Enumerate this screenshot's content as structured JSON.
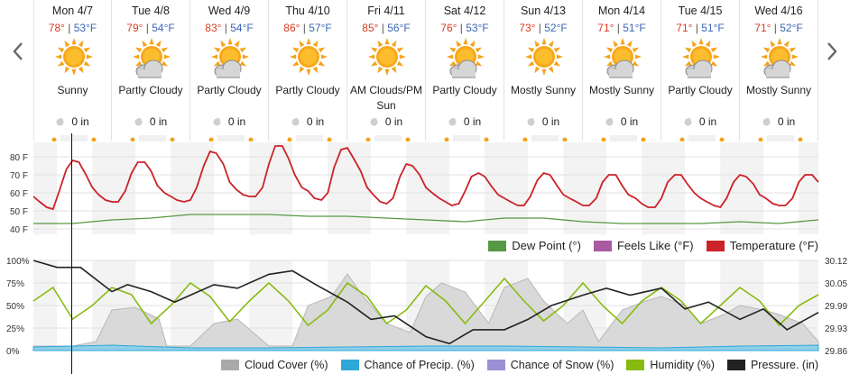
{
  "nav": {
    "prev_icon": "chevron-left-icon",
    "next_icon": "chevron-right-icon"
  },
  "forecast": [
    {
      "day": "Mon 4/7",
      "hi": "78°",
      "lo": "53°F",
      "icon": "sunny-icon",
      "condition": "Sunny",
      "precip": "0 in"
    },
    {
      "day": "Tue 4/8",
      "hi": "79°",
      "lo": "54°F",
      "icon": "partly-cloudy-icon",
      "condition": "Partly Cloudy",
      "precip": "0 in"
    },
    {
      "day": "Wed 4/9",
      "hi": "83°",
      "lo": "54°F",
      "icon": "partly-cloudy-icon",
      "condition": "Partly Cloudy",
      "precip": "0 in"
    },
    {
      "day": "Thu 4/10",
      "hi": "86°",
      "lo": "57°F",
      "icon": "sunny-icon",
      "condition": "Partly Cloudy",
      "precip": "0 in"
    },
    {
      "day": "Fri 4/11",
      "hi": "85°",
      "lo": "56°F",
      "icon": "sunny-icon",
      "condition": "AM Clouds/PM Sun",
      "precip": "0 in"
    },
    {
      "day": "Sat 4/12",
      "hi": "76°",
      "lo": "53°F",
      "icon": "partly-cloudy-icon",
      "condition": "Partly Cloudy",
      "precip": "0 in"
    },
    {
      "day": "Sun 4/13",
      "hi": "73°",
      "lo": "52°F",
      "icon": "sunny-icon",
      "condition": "Mostly Sunny",
      "precip": "0 in"
    },
    {
      "day": "Mon 4/14",
      "hi": "71°",
      "lo": "51°F",
      "icon": "partly-cloudy-icon",
      "condition": "Mostly Sunny",
      "precip": "0 in"
    },
    {
      "day": "Tue 4/15",
      "hi": "71°",
      "lo": "51°F",
      "icon": "partly-cloudy-icon",
      "condition": "Partly Cloudy",
      "precip": "0 in"
    },
    {
      "day": "Wed 4/16",
      "hi": "71°",
      "lo": "52°F",
      "icon": "partly-cloudy-icon",
      "condition": "Mostly Sunny",
      "precip": "0 in"
    }
  ],
  "colors": {
    "temperature": "#cc2229",
    "dew_point": "#559944",
    "feels_like": "#a95aa1",
    "cloud_cover": "#aaaaaa",
    "precip": "#2ea8d8",
    "snow": "#9b8fd6",
    "humidity": "#88bb11",
    "pressure": "#222222",
    "high": "#d63a1f",
    "low": "#3a66b5"
  },
  "legend_top": [
    {
      "key": "dew_point",
      "label": "Dew Point (°)"
    },
    {
      "key": "feels_like",
      "label": "Feels Like (°F)"
    },
    {
      "key": "temperature",
      "label": "Temperature (°F)"
    }
  ],
  "legend_bottom": [
    {
      "key": "cloud_cover",
      "label": "Cloud Cover (%)"
    },
    {
      "key": "precip",
      "label": "Chance of Precip. (%)"
    },
    {
      "key": "snow",
      "label": "Chance of Snow (%)"
    },
    {
      "key": "humidity",
      "label": "Humidity (%)"
    },
    {
      "key": "pressure",
      "label": "Pressure. (in)"
    }
  ],
  "chart_data": [
    {
      "type": "line",
      "title": "",
      "y_ticks": [
        "80 F",
        "70 F",
        "60 F",
        "50 F",
        "40 F"
      ],
      "ylim": [
        37,
        88
      ],
      "x_days": 10,
      "grid": true,
      "series": [
        {
          "name": "Temperature (°F)",
          "key": "temperature",
          "x": [
            0,
            0.08,
            0.17,
            0.25,
            0.33,
            0.42,
            0.5,
            0.58,
            0.67,
            0.75,
            0.83,
            0.92,
            1,
            1.08,
            1.17,
            1.25,
            1.33,
            1.42,
            1.5,
            1.58,
            1.67,
            1.75,
            1.83,
            1.92,
            2,
            2.08,
            2.17,
            2.25,
            2.33,
            2.42,
            2.5,
            2.58,
            2.67,
            2.75,
            2.83,
            2.92,
            3,
            3.08,
            3.17,
            3.25,
            3.33,
            3.42,
            3.5,
            3.58,
            3.67,
            3.75,
            3.83,
            3.92,
            4,
            4.08,
            4.17,
            4.25,
            4.33,
            4.42,
            4.5,
            4.58,
            4.67,
            4.75,
            4.83,
            4.92,
            5,
            5.08,
            5.17,
            5.25,
            5.33,
            5.42,
            5.5,
            5.58,
            5.67,
            5.75,
            5.83,
            5.92,
            6,
            6.08,
            6.17,
            6.25,
            6.33,
            6.42,
            6.5,
            6.58,
            6.67,
            6.75,
            6.83,
            6.92,
            7,
            7.08,
            7.17,
            7.25,
            7.33,
            7.42,
            7.5,
            7.58,
            7.67,
            7.75,
            7.83,
            7.92,
            8,
            8.08,
            8.17,
            8.25,
            8.33,
            8.42,
            8.5,
            8.58,
            8.67,
            8.75,
            8.83,
            8.92,
            9,
            9.08,
            9.17,
            9.25,
            9.33,
            9.42,
            9.5,
            9.58,
            9.67,
            9.75,
            9.83,
            9.92,
            10
          ],
          "y": [
            58,
            55,
            52,
            51,
            61,
            73,
            78,
            77,
            70,
            63,
            59,
            56,
            55,
            55,
            61,
            71,
            77,
            77,
            72,
            64,
            60,
            58,
            56,
            55,
            56,
            63,
            75,
            83,
            82,
            76,
            66,
            62,
            59,
            58,
            58,
            63,
            76,
            86,
            86,
            79,
            70,
            63,
            61,
            57,
            56,
            60,
            74,
            84,
            85,
            79,
            72,
            63,
            59,
            55,
            54,
            57,
            69,
            76,
            75,
            70,
            63,
            60,
            57,
            55,
            53,
            54,
            61,
            69,
            71,
            69,
            64,
            59,
            57,
            55,
            53,
            53,
            58,
            67,
            71,
            70,
            64,
            59,
            57,
            55,
            53,
            53,
            57,
            66,
            70,
            70,
            64,
            59,
            57,
            54,
            52,
            52,
            57,
            66,
            70,
            70,
            65,
            60,
            57,
            55,
            53,
            52,
            57,
            66,
            70,
            69,
            65,
            59,
            57,
            54,
            53,
            53,
            57,
            66,
            70,
            70,
            66
          ]
        },
        {
          "name": "Dew Point (°)",
          "key": "dew_point",
          "x": [
            0,
            0.5,
            1,
            1.5,
            2,
            2.5,
            3,
            3.5,
            4,
            4.5,
            5,
            5.5,
            6,
            6.5,
            7,
            7.5,
            8,
            8.5,
            9,
            9.5,
            10
          ],
          "y": [
            43,
            43,
            45,
            46,
            48,
            48,
            48,
            47,
            47,
            46,
            45,
            44,
            46,
            46,
            44,
            43,
            43,
            43,
            44,
            43,
            45
          ]
        },
        {
          "name": "Feels Like (°F)",
          "key": "feels_like",
          "x": [],
          "y": []
        }
      ]
    },
    {
      "type": "area",
      "title": "",
      "y_ticks_left": [
        "100%",
        "75%",
        "50%",
        "25%",
        "0%"
      ],
      "y_ticks_right": [
        "30.12",
        "30.05",
        "29.99",
        "29.93",
        "29.86"
      ],
      "ylim": [
        0,
        100
      ],
      "y2lim": [
        29.86,
        30.12
      ],
      "x_days": 10,
      "series": [
        {
          "name": "Cloud Cover (%)",
          "key": "cloud_cover",
          "x": [
            0,
            0.5,
            0.8,
            1,
            1.3,
            1.6,
            1.7,
            2,
            2.3,
            2.6,
            3,
            3.3,
            3.5,
            3.8,
            4,
            4.2,
            4.5,
            4.8,
            5,
            5.2,
            5.5,
            5.8,
            6,
            6.3,
            6.5,
            6.8,
            7,
            7.2,
            7.5,
            7.8,
            8,
            8.3,
            8.5,
            8.8,
            9,
            9.3,
            9.5,
            9.8,
            10
          ],
          "y": [
            5,
            5,
            10,
            45,
            48,
            35,
            5,
            5,
            30,
            35,
            5,
            5,
            50,
            60,
            85,
            60,
            30,
            20,
            60,
            75,
            65,
            30,
            70,
            80,
            55,
            30,
            45,
            10,
            45,
            55,
            60,
            50,
            30,
            40,
            50,
            45,
            40,
            30,
            10
          ]
        },
        {
          "name": "Chance of Precip. (%)",
          "key": "precip",
          "x": [
            0,
            1,
            2,
            3,
            4,
            5,
            6,
            7,
            8,
            9,
            10
          ],
          "y": [
            4,
            6,
            3,
            3,
            4,
            5,
            5,
            4,
            3,
            5,
            6
          ]
        },
        {
          "name": "Chance of Snow (%)",
          "key": "snow",
          "x": [],
          "y": []
        },
        {
          "name": "Humidity (%)",
          "key": "humidity",
          "x": [
            0,
            0.25,
            0.5,
            0.75,
            1,
            1.25,
            1.5,
            1.75,
            2,
            2.25,
            2.5,
            2.75,
            3,
            3.25,
            3.5,
            3.75,
            4,
            4.25,
            4.5,
            4.75,
            5,
            5.25,
            5.5,
            5.75,
            6,
            6.25,
            6.5,
            6.75,
            7,
            7.25,
            7.5,
            7.75,
            8,
            8.25,
            8.5,
            8.75,
            9,
            9.25,
            9.5,
            9.75,
            10
          ],
          "y": [
            55,
            70,
            35,
            50,
            70,
            62,
            30,
            50,
            75,
            60,
            32,
            55,
            75,
            55,
            28,
            45,
            75,
            60,
            30,
            45,
            72,
            55,
            30,
            55,
            80,
            55,
            33,
            50,
            75,
            50,
            30,
            55,
            70,
            55,
            30,
            50,
            70,
            55,
            28,
            50,
            62
          ]
        },
        {
          "name": "Pressure. (in)",
          "key": "pressure",
          "axis": "right",
          "x": [
            0,
            0.3,
            0.6,
            1,
            1.2,
            1.5,
            1.8,
            2,
            2.3,
            2.6,
            3,
            3.3,
            3.6,
            4,
            4.3,
            4.6,
            5,
            5.3,
            5.6,
            6,
            6.3,
            6.6,
            7,
            7.3,
            7.6,
            8,
            8.3,
            8.6,
            9,
            9.3,
            9.6,
            10
          ],
          "y": [
            30.12,
            30.1,
            30.1,
            30.03,
            30.05,
            30.03,
            30.0,
            30.02,
            30.05,
            30.04,
            30.08,
            30.09,
            30.05,
            30.0,
            29.95,
            29.96,
            29.9,
            29.88,
            29.92,
            29.92,
            29.95,
            29.99,
            30.02,
            30.04,
            30.02,
            30.04,
            29.98,
            30.0,
            29.95,
            29.98,
            29.92,
            29.97
          ]
        }
      ]
    }
  ]
}
